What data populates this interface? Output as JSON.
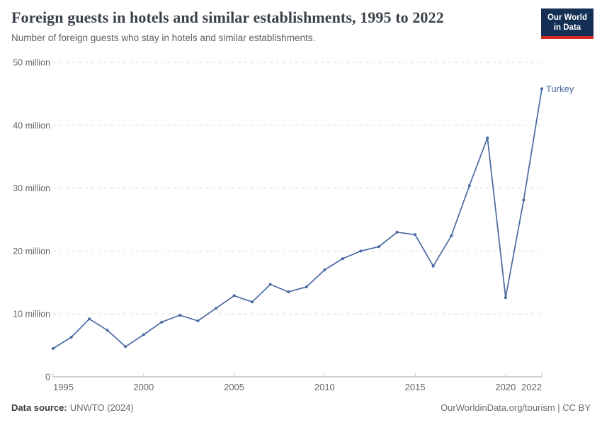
{
  "header": {
    "title": "Foreign guests in hotels and similar establishments, 1995 to 2022",
    "subtitle": "Number of foreign guests who stay in hotels and similar establishments.",
    "logo": {
      "line1": "Our World",
      "line2": "in Data"
    }
  },
  "chart_data": {
    "type": "line",
    "title": "Foreign guests in hotels and similar establishments, 1995 to 2022",
    "xlabel": "",
    "ylabel": "",
    "unit": "million",
    "ylim": [
      0,
      50
    ],
    "grid": "horizontal-dashed",
    "legend_position": "end-of-line",
    "x": [
      1995,
      1996,
      1997,
      1998,
      1999,
      2000,
      2001,
      2002,
      2003,
      2004,
      2005,
      2006,
      2007,
      2008,
      2009,
      2010,
      2011,
      2012,
      2013,
      2014,
      2015,
      2016,
      2017,
      2018,
      2019,
      2020,
      2021,
      2022
    ],
    "series": [
      {
        "name": "Turkey",
        "color": "#4a69a2",
        "values": [
          4.5,
          6.3,
          9.2,
          7.4,
          4.8,
          6.7,
          8.7,
          9.8,
          8.9,
          10.9,
          12.9,
          11.9,
          14.7,
          13.5,
          14.3,
          17.0,
          18.8,
          20.0,
          20.7,
          23.0,
          22.6,
          17.6,
          22.4,
          30.4,
          38.0,
          12.6,
          28.1,
          45.8
        ]
      }
    ],
    "yticks": [
      {
        "value": 0,
        "label": "0"
      },
      {
        "value": 10,
        "label": "10 million"
      },
      {
        "value": 20,
        "label": "20 million"
      },
      {
        "value": 30,
        "label": "30 million"
      },
      {
        "value": 40,
        "label": "40 million"
      },
      {
        "value": 50,
        "label": "50 million"
      }
    ],
    "xticks": [
      1995,
      2000,
      2005,
      2010,
      2015,
      2020,
      2022
    ]
  },
  "footer": {
    "source_label": "Data source:",
    "source_value": "UNWTO (2024)",
    "link": "OurWorldinData.org/tourism | CC BY"
  },
  "colors": {
    "line": "#4a69a2",
    "grid": "#dadada",
    "axis": "#a3a3a3",
    "tick": "#c4c4c4",
    "tick_label": "#666666",
    "logo_bg": "#132f53",
    "logo_stripe": "#d42b20"
  }
}
